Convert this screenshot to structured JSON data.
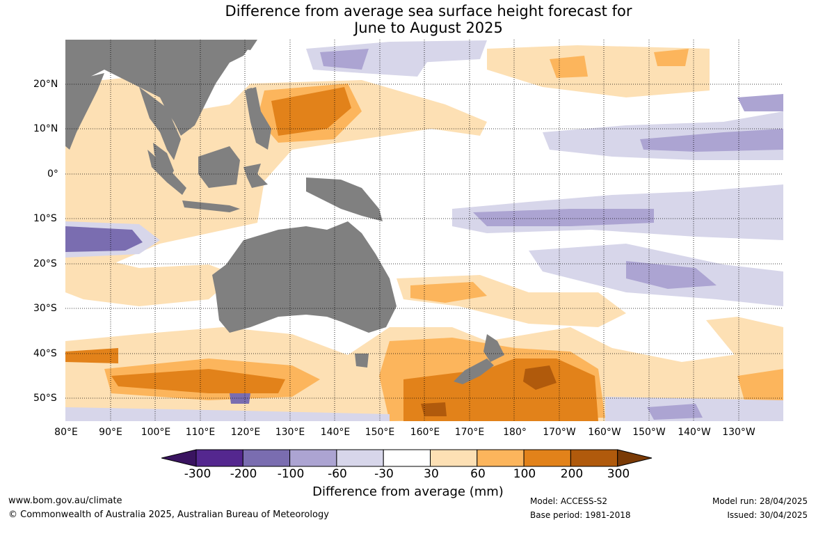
{
  "title": {
    "line1": "Difference from average sea surface height forecast for",
    "line2": "June to August 2025"
  },
  "map": {
    "land_color": "#808080",
    "lat_labels": [
      "20°N",
      "10°N",
      "0°",
      "10°S",
      "20°S",
      "30°S",
      "40°S",
      "50°S"
    ],
    "lon_labels": [
      "80°E",
      "90°E",
      "100°E",
      "110°E",
      "120°E",
      "130°E",
      "140°E",
      "150°E",
      "160°E",
      "170°E",
      "180°",
      "170°W",
      "160°W",
      "150°W",
      "140°W",
      "130°W"
    ],
    "graticule": "dotted"
  },
  "colorbar": {
    "ticks": [
      "-300",
      "-200",
      "-100",
      "-60",
      "-30",
      "30",
      "60",
      "100",
      "200",
      "300"
    ],
    "colors": [
      "#3a1460",
      "#54278f",
      "#7a6db0",
      "#aca4d2",
      "#d7d6ea",
      "#ffffff",
      "#fde0b4",
      "#fcb55c",
      "#e2821a",
      "#b05a0c",
      "#7a3a06"
    ],
    "title": "Difference from average (mm)"
  },
  "footer": {
    "url": "www.bom.gov.au/climate",
    "copyright": "© Commonwealth of Australia 2025, Australian Bureau of Meteorology",
    "model": "Model: ACCESS-S2",
    "base_period": "Base period: 1981-2018",
    "model_run": "Model run: 28/04/2025",
    "issued": "Issued: 30/04/2025"
  }
}
